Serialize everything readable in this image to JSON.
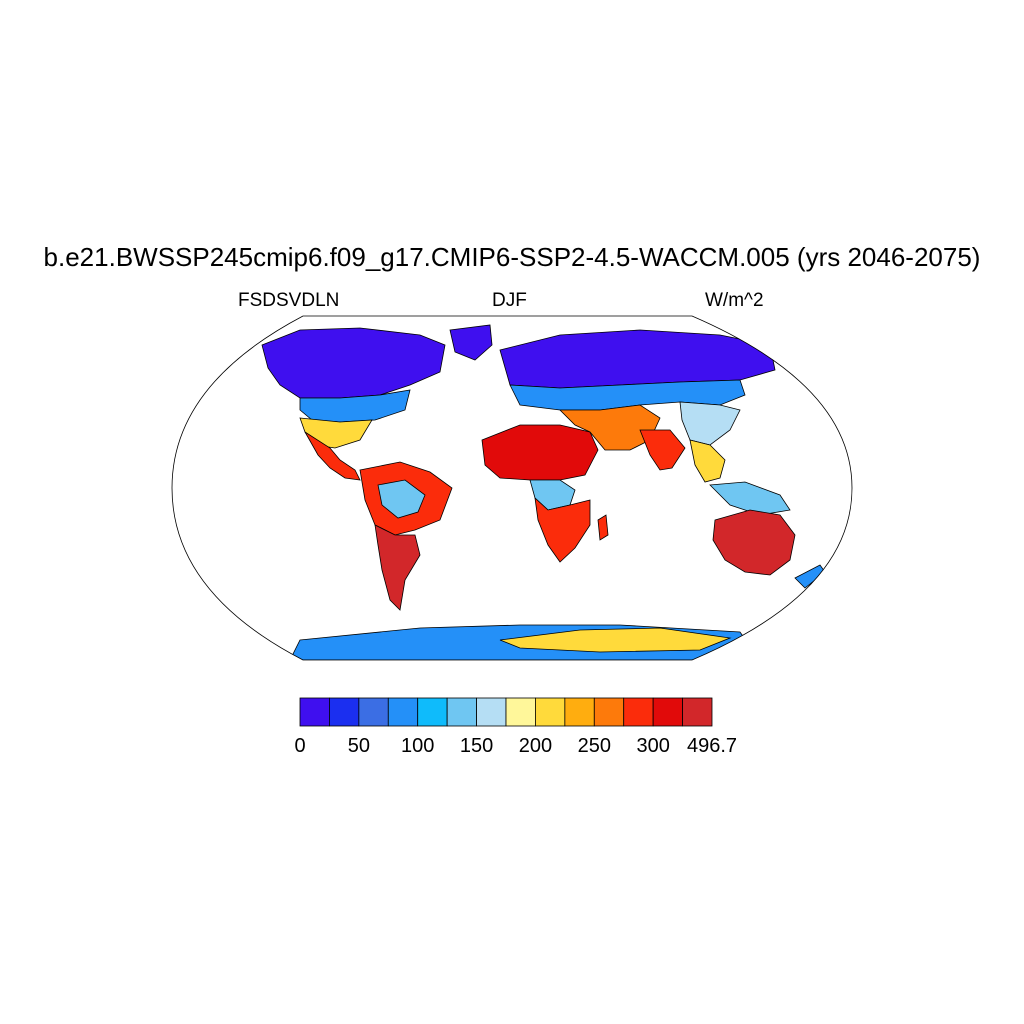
{
  "title": "b.e21.BWSSP245cmip6.f09_g17.CMIP6-SSP2-4.5-WACCM.005 (yrs 2046-2075)",
  "subtitles": {
    "left": "FSDSVDLN",
    "center": "DJF",
    "right": "W/m^2"
  },
  "colorbar": {
    "colors": [
      "#3f0fef",
      "#1b2ff0",
      "#3b6ee4",
      "#2490f8",
      "#0fbbfb",
      "#6fc6f2",
      "#b5def4",
      "#fff79a",
      "#ffda3b",
      "#ffad0f",
      "#fd7a0b",
      "#fb2c0b",
      "#e10a0a",
      "#d2272a"
    ],
    "labels": [
      "0",
      "50",
      "100",
      "150",
      "200",
      "250",
      "300",
      "496.7"
    ]
  }
}
